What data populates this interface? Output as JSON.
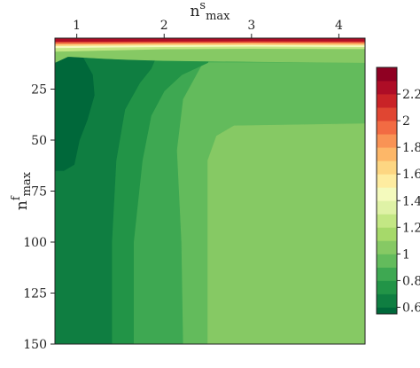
{
  "chart_data": {
    "type": "heatmap",
    "title": "",
    "xaxis": {
      "label_base": "n",
      "label_sup": "s",
      "label_sub": "max",
      "position": "top",
      "range": [
        0.75,
        4.3
      ],
      "ticks": [
        1,
        2,
        3,
        4
      ],
      "tick_labels": [
        "1",
        "2",
        "3",
        "4"
      ]
    },
    "yaxis": {
      "label_base": "n",
      "label_sup": "f",
      "label_sub": "max",
      "position": "left",
      "inverted": true,
      "range": [
        0,
        150
      ],
      "ticks": [
        25,
        50,
        75,
        100,
        125,
        150
      ],
      "tick_labels": [
        "25",
        "50",
        "75",
        "100",
        "125",
        "150"
      ]
    },
    "colorbar": {
      "position": "right",
      "range": [
        0.55,
        2.4
      ],
      "ticks": [
        0.6,
        0.8,
        1,
        1.2,
        1.4,
        1.6,
        1.8,
        2,
        2.2
      ],
      "tick_labels": [
        "0.6",
        "0.8",
        "1",
        "1.2",
        "1.4",
        "1.6",
        "1.8",
        "2",
        "2.2"
      ],
      "levels": [
        {
          "from": 0.5,
          "to": 0.6,
          "color": "#00683a"
        },
        {
          "from": 0.6,
          "to": 0.7,
          "color": "#0f7e41"
        },
        {
          "from": 0.7,
          "to": 0.8,
          "color": "#229447"
        },
        {
          "from": 0.8,
          "to": 0.9,
          "color": "#3ea852"
        },
        {
          "from": 0.9,
          "to": 1.0,
          "color": "#63bb5c"
        },
        {
          "from": 1.0,
          "to": 1.1,
          "color": "#86c964"
        },
        {
          "from": 1.1,
          "to": 1.2,
          "color": "#a6d96a"
        },
        {
          "from": 1.2,
          "to": 1.3,
          "color": "#c3e784"
        },
        {
          "from": 1.3,
          "to": 1.4,
          "color": "#dff2a6"
        },
        {
          "from": 1.4,
          "to": 1.5,
          "color": "#f4fabd"
        },
        {
          "from": 1.5,
          "to": 1.6,
          "color": "#feeca0"
        },
        {
          "from": 1.6,
          "to": 1.7,
          "color": "#fdd682"
        },
        {
          "from": 1.7,
          "to": 1.8,
          "color": "#fdb768"
        },
        {
          "from": 1.8,
          "to": 1.9,
          "color": "#f99355"
        },
        {
          "from": 1.9,
          "to": 2.0,
          "color": "#f26b43"
        },
        {
          "from": 2.0,
          "to": 2.1,
          "color": "#e04632"
        },
        {
          "from": 2.1,
          "to": 2.2,
          "color": "#c92327"
        },
        {
          "from": 2.2,
          "to": 2.3,
          "color": "#ae0d26"
        },
        {
          "from": 2.3,
          "to": 2.4,
          "color": "#8f0022"
        }
      ]
    },
    "regions": [
      {
        "level": 0.85,
        "points": [
          [
            0.75,
            150
          ],
          [
            0.75,
            0
          ],
          [
            4.3,
            0
          ],
          [
            4.3,
            150
          ]
        ]
      },
      {
        "level": 0.95,
        "points": [
          [
            2.22,
            150
          ],
          [
            2.2,
            100
          ],
          [
            2.15,
            55
          ],
          [
            2.22,
            30
          ],
          [
            2.45,
            12
          ],
          [
            4.3,
            12
          ],
          [
            4.3,
            150
          ]
        ]
      },
      {
        "level": 1.05,
        "points": [
          [
            2.5,
            150
          ],
          [
            2.5,
            60
          ],
          [
            2.6,
            48
          ],
          [
            2.8,
            43
          ],
          [
            4.3,
            42
          ],
          [
            4.3,
            150
          ]
        ]
      },
      {
        "level": 0.75,
        "points": [
          [
            0.75,
            150
          ],
          [
            0.75,
            0
          ],
          [
            2.6,
            0
          ],
          [
            2.5,
            12
          ],
          [
            2.2,
            18
          ],
          [
            2.0,
            26
          ],
          [
            1.85,
            38
          ],
          [
            1.75,
            60
          ],
          [
            1.65,
            100
          ],
          [
            1.65,
            150
          ]
        ]
      },
      {
        "level": 0.65,
        "points": [
          [
            0.75,
            150
          ],
          [
            0.75,
            0
          ],
          [
            2.0,
            0
          ],
          [
            1.85,
            15
          ],
          [
            1.72,
            22
          ],
          [
            1.55,
            35
          ],
          [
            1.45,
            60
          ],
          [
            1.4,
            100
          ],
          [
            1.4,
            150
          ]
        ]
      },
      {
        "level": 0.55,
        "points": [
          [
            0.75,
            65
          ],
          [
            0.75,
            7
          ],
          [
            1.05,
            8
          ],
          [
            1.18,
            18
          ],
          [
            1.2,
            28
          ],
          [
            1.12,
            40
          ],
          [
            1.03,
            50
          ],
          [
            0.97,
            62
          ],
          [
            0.85,
            65
          ]
        ]
      },
      {
        "level": 1.05,
        "points": [
          [
            0.75,
            12
          ],
          [
            0.75,
            4.2
          ],
          [
            4.3,
            4.2
          ],
          [
            4.3,
            12
          ],
          [
            3.0,
            11.5
          ],
          [
            2.0,
            11
          ],
          [
            1.6,
            10.5
          ],
          [
            1.3,
            10
          ],
          [
            0.9,
            9
          ]
        ]
      },
      {
        "level": 1.25,
        "points": [
          [
            0.75,
            6.5
          ],
          [
            0.75,
            3.2
          ],
          [
            4.3,
            3.2
          ],
          [
            4.3,
            5.2
          ],
          [
            3.0,
            5.1
          ],
          [
            2.0,
            5.3
          ],
          [
            1.5,
            5.8
          ],
          [
            1.0,
            6.3
          ]
        ]
      },
      {
        "level": 1.45,
        "points": [
          [
            0.75,
            4.8
          ],
          [
            0.75,
            2.6
          ],
          [
            4.3,
            2.6
          ],
          [
            4.3,
            4.2
          ],
          [
            3.0,
            4.0
          ],
          [
            2.0,
            4.2
          ],
          [
            1.2,
            4.5
          ]
        ]
      },
      {
        "level": 1.65,
        "points": [
          [
            0.75,
            3.8
          ],
          [
            0.75,
            2.1
          ],
          [
            4.3,
            2.1
          ],
          [
            4.3,
            3.5
          ],
          [
            3.0,
            3.3
          ],
          [
            2.0,
            3.4
          ],
          [
            1.2,
            3.6
          ]
        ]
      },
      {
        "level": 1.85,
        "points": [
          [
            0.75,
            3.0
          ],
          [
            0.75,
            1.6
          ],
          [
            4.3,
            1.6
          ],
          [
            4.3,
            2.8
          ],
          [
            3.0,
            2.6
          ],
          [
            2.0,
            2.7
          ],
          [
            1.2,
            2.9
          ]
        ]
      },
      {
        "level": 2.05,
        "points": [
          [
            0.75,
            2.3
          ],
          [
            0.75,
            1.1
          ],
          [
            4.3,
            1.1
          ],
          [
            4.3,
            2.1
          ],
          [
            3.0,
            2.0
          ],
          [
            2.0,
            2.1
          ]
        ]
      },
      {
        "level": 2.25,
        "points": [
          [
            0.75,
            1.6
          ],
          [
            0.75,
            0
          ],
          [
            4.3,
            0
          ],
          [
            4.3,
            1.5
          ],
          [
            3.0,
            1.4
          ],
          [
            2.0,
            1.5
          ]
        ]
      }
    ]
  }
}
